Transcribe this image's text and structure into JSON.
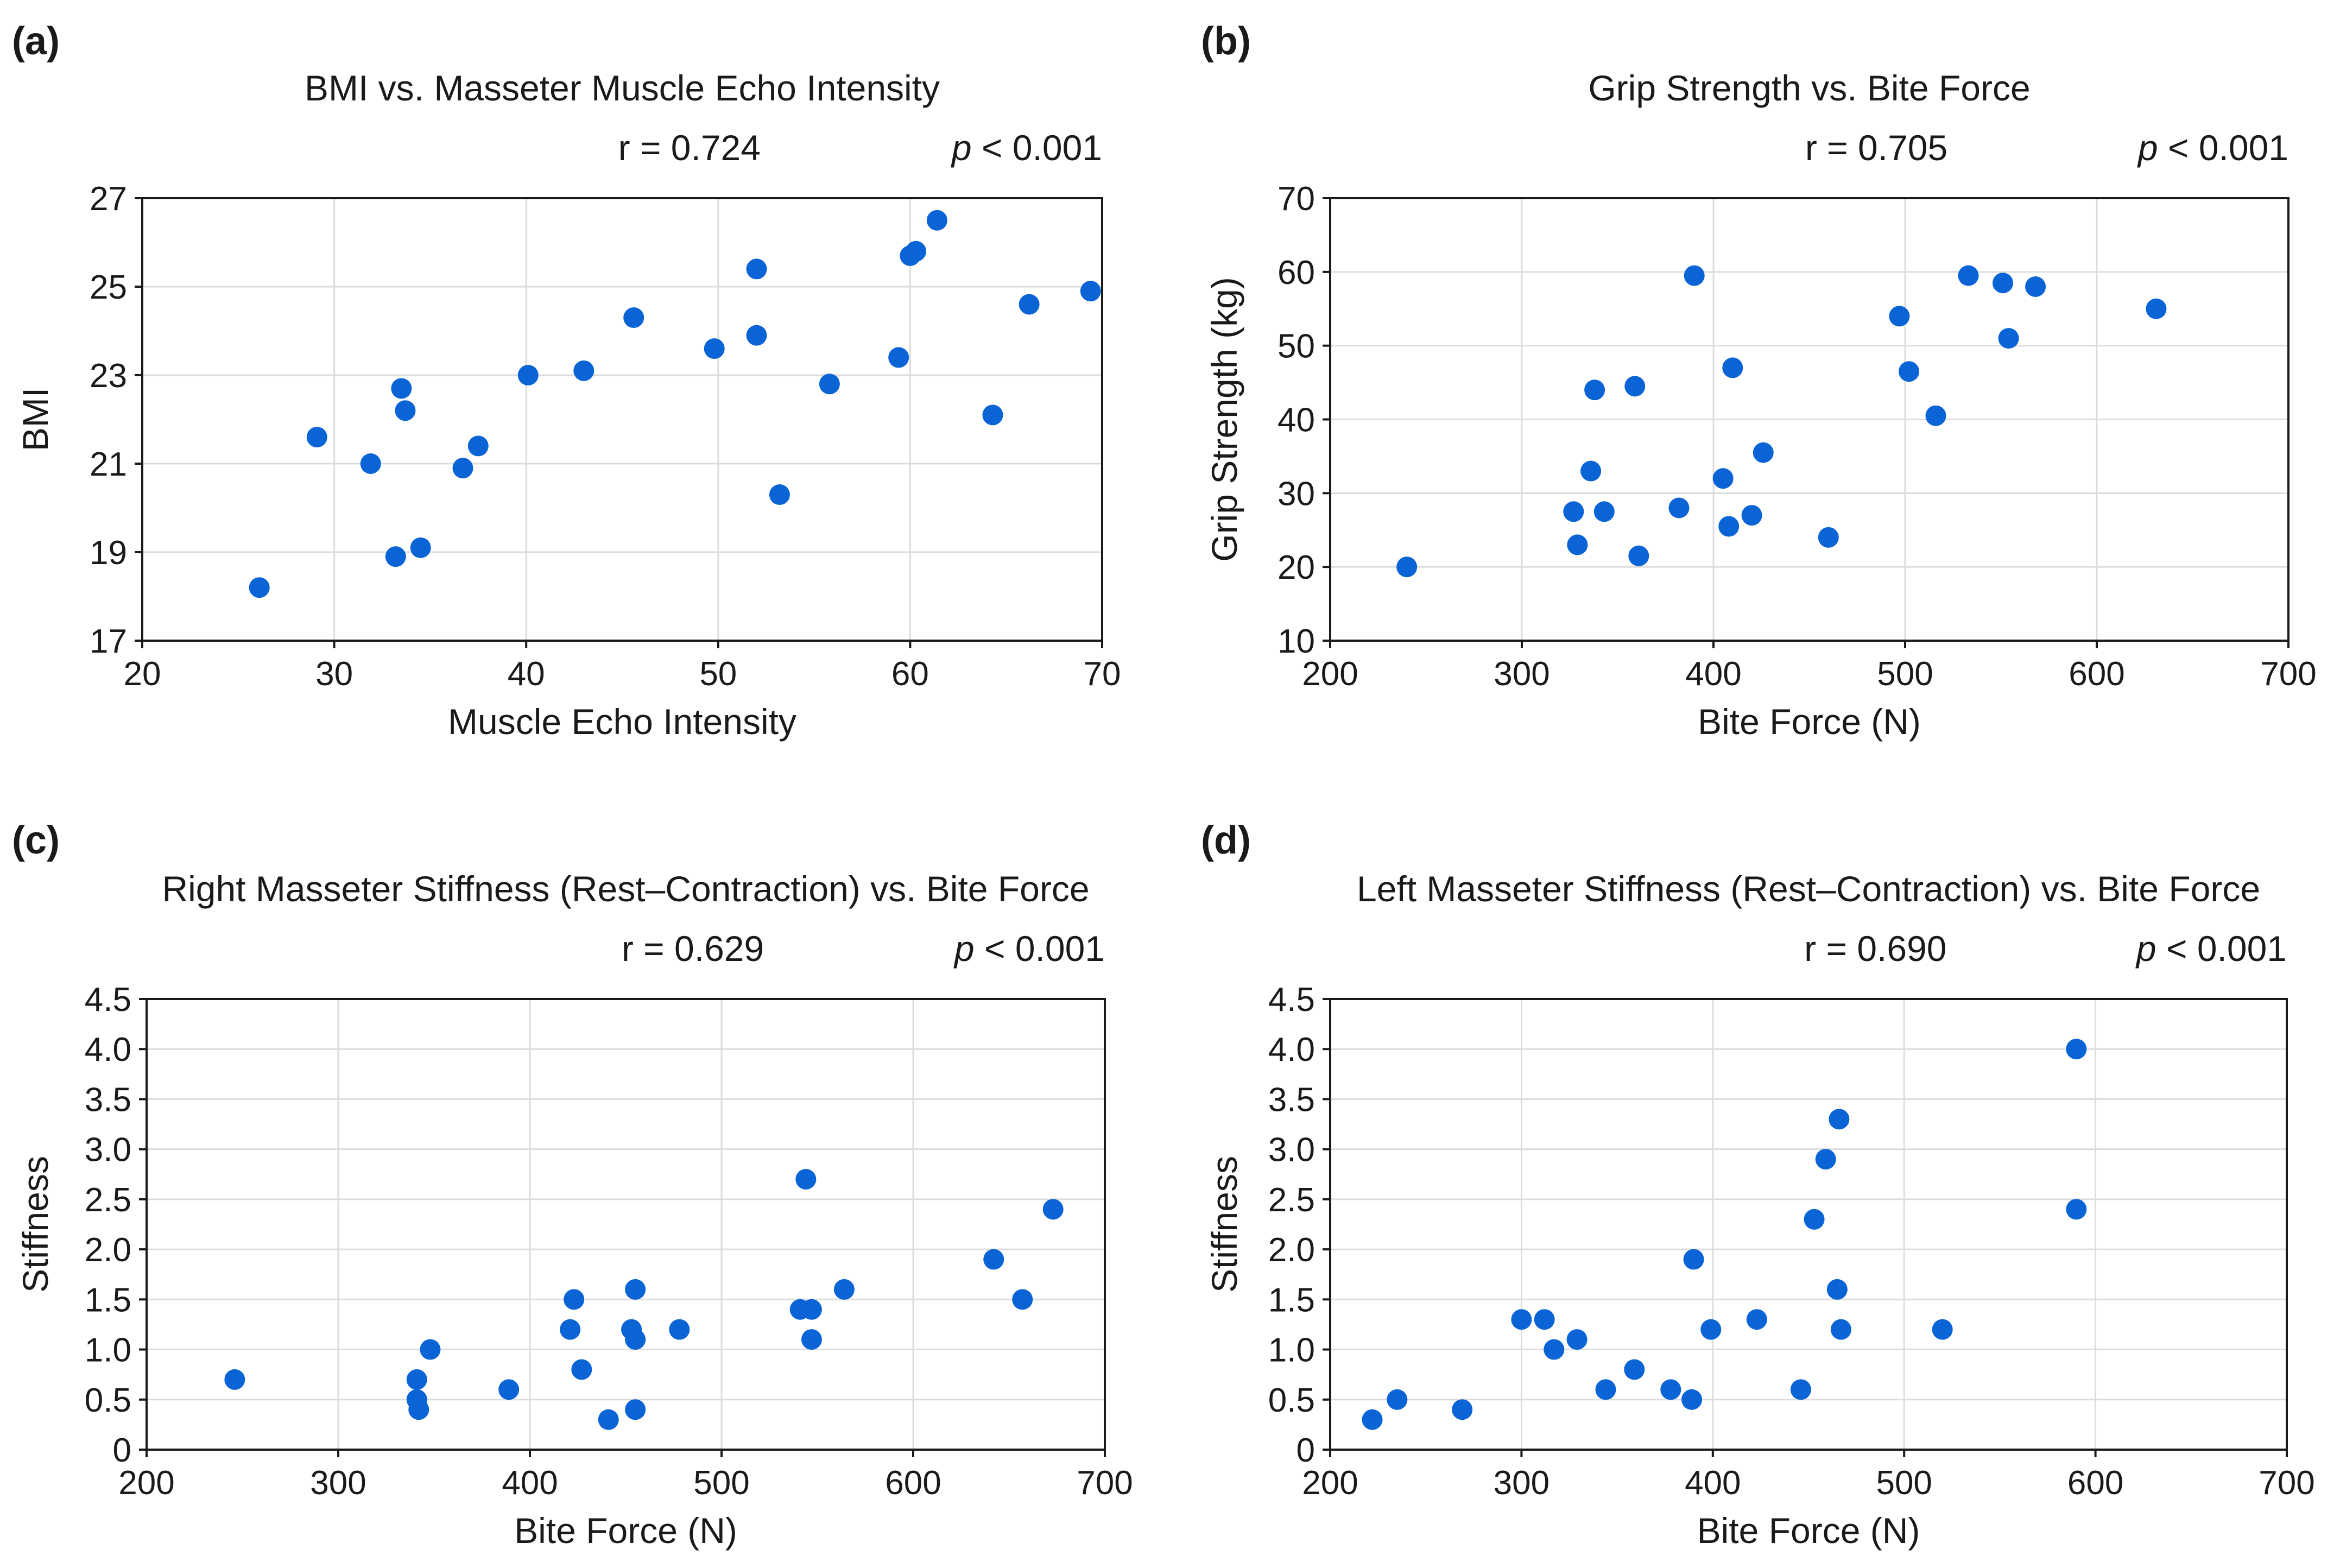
{
  "chart_data": [
    {
      "type": "scatter",
      "panel_label": "(a)",
      "title": "BMI vs. Masseter Muscle Echo Intensity",
      "r_text": "r = 0.724",
      "p_symbol": "p",
      "p_rest": " < 0.001",
      "xlabel": "Muscle Echo Intensity",
      "ylabel": "BMI",
      "xlim": [
        20,
        70
      ],
      "ylim": [
        17,
        27
      ],
      "xticks": [
        20,
        30,
        40,
        50,
        60,
        70
      ],
      "yticks": [
        17,
        19,
        21,
        23,
        25,
        27
      ],
      "ytick_decimals": 0,
      "grid": true,
      "marker_color": "#0a64d6",
      "points": [
        [
          26.1,
          18.2
        ],
        [
          29.1,
          21.6
        ],
        [
          31.9,
          21.0
        ],
        [
          33.2,
          18.9
        ],
        [
          33.5,
          22.7
        ],
        [
          33.7,
          22.2
        ],
        [
          34.5,
          19.1
        ],
        [
          36.7,
          20.9
        ],
        [
          37.5,
          21.4
        ],
        [
          40.1,
          23.0
        ],
        [
          43.0,
          23.1
        ],
        [
          45.6,
          24.3
        ],
        [
          49.8,
          23.6
        ],
        [
          52.0,
          25.4
        ],
        [
          52.0,
          23.9
        ],
        [
          53.2,
          20.3
        ],
        [
          55.8,
          22.8
        ],
        [
          59.4,
          23.4
        ],
        [
          60.0,
          25.7
        ],
        [
          60.3,
          25.8
        ],
        [
          61.4,
          26.5
        ],
        [
          64.3,
          22.1
        ],
        [
          66.2,
          24.6
        ],
        [
          69.4,
          24.9
        ]
      ]
    },
    {
      "type": "scatter",
      "panel_label": "(b)",
      "title": "Grip Strength vs. Bite Force",
      "r_text": "r = 0.705",
      "p_symbol": "p",
      "p_rest": " < 0.001",
      "xlabel": "Bite Force (N)",
      "ylabel": "Grip Strength (kg)",
      "xlim": [
        200,
        700
      ],
      "ylim": [
        10,
        70
      ],
      "xticks": [
        200,
        300,
        400,
        500,
        600,
        700
      ],
      "yticks": [
        10,
        20,
        30,
        40,
        50,
        60,
        70
      ],
      "ytick_decimals": 0,
      "grid": true,
      "marker_color": "#0a64d6",
      "points": [
        [
          240,
          20.0
        ],
        [
          327,
          27.5
        ],
        [
          329,
          23.0
        ],
        [
          336,
          33.0
        ],
        [
          338,
          44.0
        ],
        [
          343,
          27.5
        ],
        [
          359,
          44.5
        ],
        [
          361,
          21.5
        ],
        [
          382,
          28.0
        ],
        [
          390,
          59.5
        ],
        [
          405,
          32.0
        ],
        [
          408,
          25.5
        ],
        [
          410,
          47.0
        ],
        [
          420,
          27.0
        ],
        [
          426,
          35.5
        ],
        [
          460,
          24.0
        ],
        [
          497,
          54.0
        ],
        [
          502,
          46.5
        ],
        [
          516,
          40.5
        ],
        [
          533,
          59.5
        ],
        [
          551,
          58.5
        ],
        [
          554,
          51.0
        ],
        [
          568,
          58.0
        ],
        [
          631,
          55.0
        ]
      ]
    },
    {
      "type": "scatter",
      "panel_label": "(c)",
      "title_parts": [
        "Right Masseter ",
        "Stiffness",
        " (Rest–Contraction) vs. Bite Force"
      ],
      "r_text": "r = 0.629",
      "p_symbol": "p",
      "p_rest": " < 0.001",
      "xlabel": "Bite Force (N)",
      "ylabel": "Stiffness",
      "xlim": [
        200,
        700
      ],
      "ylim": [
        0,
        4.5
      ],
      "xticks": [
        200,
        300,
        400,
        500,
        600,
        700
      ],
      "yticks": [
        0,
        0.5,
        1.0,
        1.5,
        2.0,
        2.5,
        3.0,
        3.5,
        4.0,
        4.5
      ],
      "ytick_decimals": 1,
      "ytick_zero_label": "0",
      "grid": true,
      "marker_color": "#0a64d6",
      "points": [
        [
          246,
          0.7
        ],
        [
          341,
          0.7
        ],
        [
          341,
          0.5
        ],
        [
          342,
          0.4
        ],
        [
          348,
          1.0
        ],
        [
          389,
          0.6
        ],
        [
          421,
          1.2
        ],
        [
          423,
          1.5
        ],
        [
          427,
          0.8
        ],
        [
          441,
          0.3
        ],
        [
          453,
          1.2
        ],
        [
          455,
          1.6
        ],
        [
          455,
          1.1
        ],
        [
          455,
          0.4
        ],
        [
          478,
          1.2
        ],
        [
          541,
          1.4
        ],
        [
          544,
          2.7
        ],
        [
          547,
          1.4
        ],
        [
          547,
          1.1
        ],
        [
          564,
          1.6
        ],
        [
          642,
          1.9
        ],
        [
          657,
          1.5
        ],
        [
          673,
          2.4
        ]
      ]
    },
    {
      "type": "scatter",
      "panel_label": "(d)",
      "title_parts": [
        "Left Masseter ",
        "Stiffness",
        " (Rest–Contraction) vs. Bite Force"
      ],
      "r_text": "r = 0.690",
      "p_symbol": "p",
      "p_rest": " < 0.001",
      "xlabel": "Bite Force (N)",
      "ylabel": "Stiffness",
      "xlim": [
        200,
        700
      ],
      "ylim": [
        0,
        4.5
      ],
      "xticks": [
        200,
        300,
        400,
        500,
        600,
        700
      ],
      "yticks": [
        0,
        0.5,
        1.0,
        1.5,
        2.0,
        2.5,
        3.0,
        3.5,
        4.0,
        4.5
      ],
      "ytick_decimals": 1,
      "ytick_zero_label": "0",
      "grid": true,
      "marker_color": "#0a64d6",
      "points": [
        [
          222,
          0.3
        ],
        [
          235,
          0.5
        ],
        [
          269,
          0.4
        ],
        [
          300,
          1.3
        ],
        [
          312,
          1.3
        ],
        [
          317,
          1.0
        ],
        [
          329,
          1.1
        ],
        [
          344,
          0.6
        ],
        [
          359,
          0.8
        ],
        [
          378,
          0.6
        ],
        [
          389,
          0.5
        ],
        [
          390,
          1.9
        ],
        [
          399,
          1.2
        ],
        [
          423,
          1.3
        ],
        [
          446,
          0.6
        ],
        [
          453,
          2.3
        ],
        [
          459,
          2.9
        ],
        [
          465,
          1.6
        ],
        [
          466,
          3.3
        ],
        [
          467,
          1.2
        ],
        [
          520,
          1.2
        ],
        [
          590,
          4.0
        ],
        [
          590,
          2.4
        ]
      ]
    }
  ]
}
